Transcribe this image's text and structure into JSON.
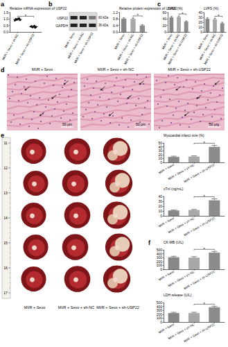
{
  "chart_data": [
    {
      "type": "scatter",
      "y_label": "Relative mRNA expression of USP22",
      "categories": [
        "MI/R + Sevo + sh-NC",
        "MI/R + Sevo + sh-USP22"
      ],
      "values": [
        [
          0.88,
          0.95,
          1.02,
          0.92,
          0.98,
          1.05
        ],
        [
          0.42,
          0.36,
          0.47,
          0.39,
          0.44,
          0.33
        ]
      ],
      "means": [
        0.97,
        0.4
      ],
      "errors": [
        0.06,
        0.05
      ],
      "color": "#000000",
      "marker": "circle",
      "ylim": [
        0,
        1.5
      ],
      "yticks": [
        {
          "value": 0,
          "label": "0.0"
        },
        0.5,
        {
          "value": 1,
          "label": "1.0"
        },
        1.5
      ],
      "grid": false,
      "annotations": [
        {
          "text": "*",
          "from": 0,
          "to": 1
        }
      ]
    },
    {
      "type": "bar",
      "y_label": "Relative protein expression of USP22",
      "categories": [
        "MI/R + Sevo",
        "MI/R + Sevo + sh-NC",
        "MI/R + Sevo + sh-USP22"
      ],
      "values": [
        0.82,
        0.8,
        0.4
      ],
      "errors": [
        0.05,
        0.06,
        0.04
      ],
      "colors": [
        "#878787",
        "#a8a8a8",
        "#8c8c8c"
      ],
      "ylim": [
        0,
        1.2
      ],
      "yticks": [
        {
          "value": 0,
          "label": "0.0"
        },
        0.4,
        0.8,
        1.2
      ],
      "grid": false,
      "annotations": [
        {
          "text": "*",
          "from": 1,
          "to": 2
        }
      ]
    },
    {
      "type": "bar",
      "y_label": "LVEF (%)",
      "categories": [
        "MI/R + Sevo",
        "MI/R + Sevo + sh-NC",
        "MI/R + Sevo + sh-USP22"
      ],
      "values": [
        45,
        46,
        32
      ],
      "errors": [
        3,
        3,
        2
      ],
      "colors": [
        "#878787",
        "#a8a8a8",
        "#8c8c8c"
      ],
      "ylim": [
        0,
        60
      ],
      "yticks": [
        0,
        20,
        40,
        60
      ],
      "grid": false,
      "annotations": [
        {
          "text": "*",
          "from": 1,
          "to": 2
        }
      ]
    },
    {
      "type": "bar",
      "y_label": "LVFS (%)",
      "categories": [
        "MI/R + Sevo",
        "MI/R + Sevo + sh-NC",
        "MI/R + Sevo + sh-USP22"
      ],
      "values": [
        27,
        26,
        18
      ],
      "errors": [
        2,
        2,
        2
      ],
      "colors": [
        "#878787",
        "#a8a8a8",
        "#8c8c8c"
      ],
      "ylim": [
        0,
        40
      ],
      "yticks": [
        0,
        10,
        20,
        30,
        40
      ],
      "grid": false,
      "annotations": [
        {
          "text": "*",
          "from": 1,
          "to": 2
        }
      ]
    },
    {
      "type": "bar",
      "y_label": "Myocardial infarct size (%)",
      "categories": [
        "MI/R + Sevo",
        "MI/R + Sevo + sh-NC",
        "MI/R + Sevo + sh-USP22"
      ],
      "values": [
        14,
        15,
        40
      ],
      "errors": [
        2,
        2,
        4
      ],
      "colors": [
        "#878787",
        "#a8a8a8",
        "#8c8c8c"
      ],
      "ylim": [
        0,
        50
      ],
      "yticks": [
        0,
        10,
        20,
        30,
        40,
        50
      ],
      "grid": false,
      "annotations": [
        {
          "text": "*",
          "from": 1,
          "to": 2
        }
      ]
    },
    {
      "type": "bar",
      "y_label": "cTnI (ng/mL)",
      "categories": [
        "MI/R + Sevo",
        "MI/R + Sevo + sh-NC",
        "MI/R + Sevo + sh-USP22"
      ],
      "values": [
        11,
        12,
        32
      ],
      "errors": [
        1,
        1,
        3
      ],
      "colors": [
        "#878787",
        "#a8a8a8",
        "#8c8c8c"
      ],
      "ylim": [
        0,
        40
      ],
      "yticks": [
        0,
        10,
        20,
        30,
        40
      ],
      "grid": false,
      "annotations": [
        {
          "text": "*",
          "from": 1,
          "to": 2
        }
      ]
    },
    {
      "type": "bar",
      "y_label": "CK-MB (U/L)",
      "categories": [
        "MI/R + Sevo",
        "MI/R + Sevo + sh-NC",
        "MI/R + Sevo + sh-USP22"
      ],
      "values": [
        310,
        300,
        430
      ],
      "errors": [
        25,
        25,
        30
      ],
      "colors": [
        "#878787",
        "#a8a8a8",
        "#8c8c8c"
      ],
      "ylim": [
        0,
        500
      ],
      "yticks": [
        0,
        100,
        200,
        300,
        400,
        500
      ],
      "grid": false,
      "annotations": [
        {
          "text": "*",
          "from": 1,
          "to": 2
        }
      ]
    },
    {
      "type": "bar",
      "y_label": "LDH release (U/L)",
      "categories": [
        "MI/R + Sevo",
        "MI/R + Sevo + sh-NC",
        "MI/R + Sevo + sh-USP22"
      ],
      "values": [
        230,
        230,
        380
      ],
      "errors": [
        20,
        20,
        25
      ],
      "colors": [
        "#878787",
        "#a8a8a8",
        "#8c8c8c"
      ],
      "ylim": [
        0,
        500
      ],
      "yticks": [
        0,
        100,
        200,
        300,
        400,
        500
      ],
      "grid": false,
      "annotations": [
        {
          "text": "*",
          "from": 1,
          "to": 2
        }
      ]
    }
  ],
  "figure": {
    "panel_labels": [
      "a",
      "b",
      "c",
      "d",
      "e",
      "f"
    ],
    "blot": {
      "rows": [
        "USP22",
        "GAPDH"
      ],
      "sizes": [
        "60 kDa",
        "36 kDa"
      ],
      "lanes": [
        "MI/R + Sevo",
        "MI/R + Sevo + sh-NC",
        "MI/R + Sevo + sh-USP22"
      ]
    },
    "histology": {
      "groups": [
        "MI/R + Sevo",
        "MI/R + Sevo + sh-NC",
        "MI/R + Sevo + sh-USP22"
      ],
      "scale_bar": "50 μm"
    },
    "hearts": {
      "groups": [
        "MI/R + Sevo",
        "MI/R + Sevo + sh-NC",
        "MI/R + Sevo + sh-USP22"
      ],
      "ruler": [
        11,
        12,
        13,
        14,
        15,
        16,
        17
      ]
    }
  }
}
